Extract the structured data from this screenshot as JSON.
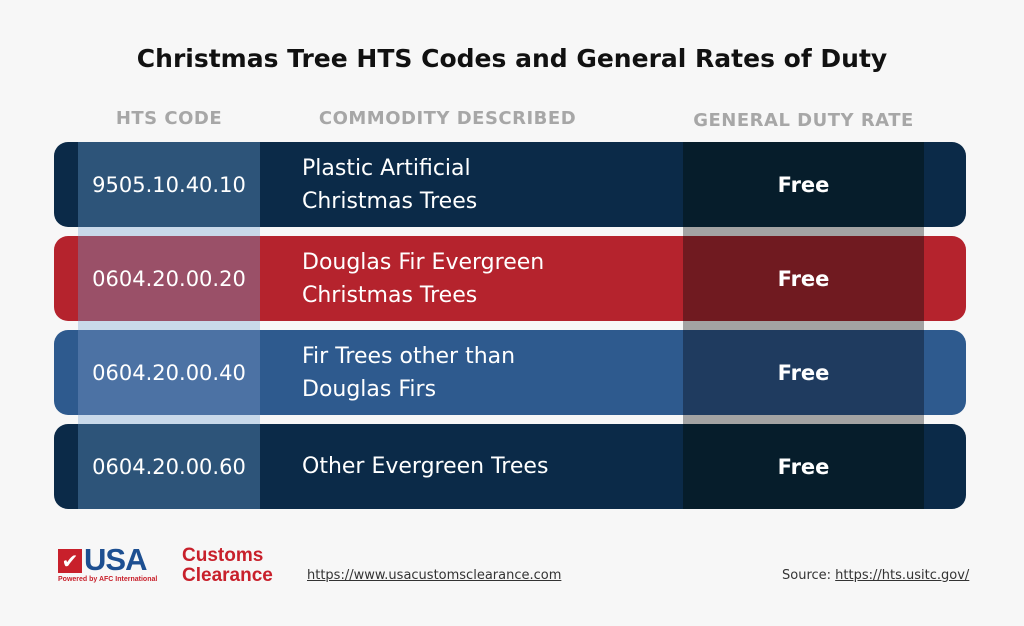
{
  "title": "Christmas Tree HTS Codes and General Rates of Duty",
  "headers": {
    "code": "HTS CODE",
    "commodity": "COMMODITY DESCRIBED",
    "duty": "GENERAL DUTY RATE"
  },
  "rows": [
    {
      "code": "9505.10.40.10",
      "desc_line1": "Plastic Artificial",
      "desc_line2": "Christmas Trees",
      "duty": "Free",
      "color": "#0b2a48"
    },
    {
      "code": "0604.20.00.20",
      "desc_line1": "Douglas Fir Evergreen",
      "desc_line2": "Christmas Trees",
      "duty": "Free",
      "color": "#b5232d"
    },
    {
      "code": "0604.20.00.40",
      "desc_line1": "Fir Trees other than",
      "desc_line2": "Douglas Firs",
      "duty": "Free",
      "color": "#2e5a8e"
    },
    {
      "code": "0604.20.00.60",
      "desc_line1": "Other Evergreen Trees",
      "desc_line2": "",
      "duty": "Free",
      "color": "#0b2a48"
    }
  ],
  "footer": {
    "logo_text": "USA Customs Clearance",
    "logo_tagline": "Powered by AFC International",
    "website": "https://www.usacustomsclearance.com",
    "source_label": "Source:",
    "source_url": "https://hts.usitc.gov/"
  }
}
